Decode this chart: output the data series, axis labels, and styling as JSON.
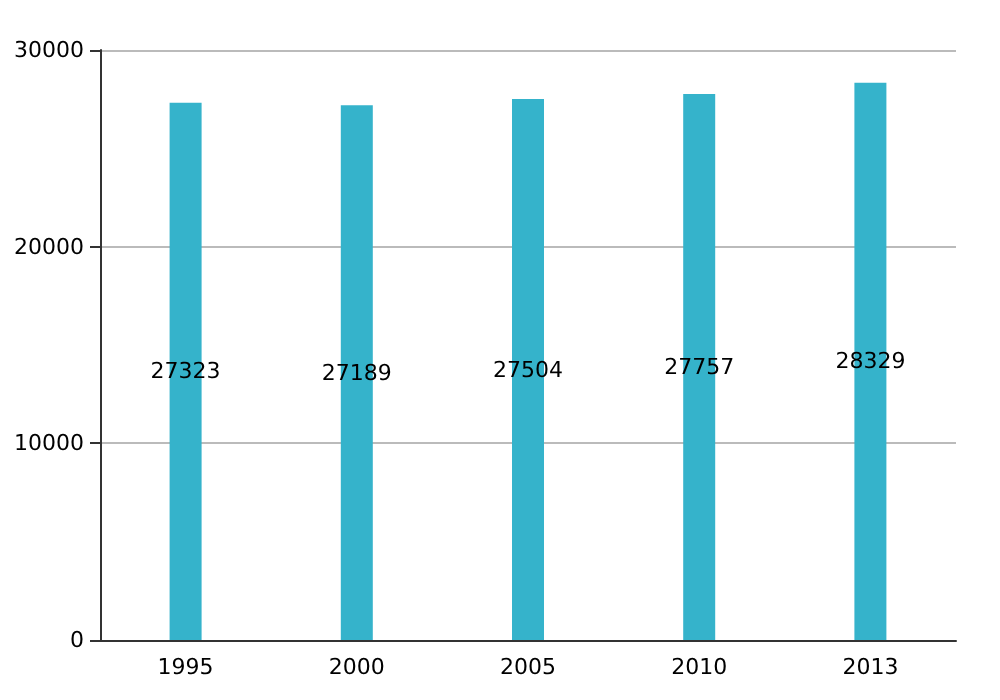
{
  "chart_data": {
    "type": "bar",
    "categories": [
      "1995",
      "2000",
      "2005",
      "2010",
      "2013"
    ],
    "values": [
      27323,
      27189,
      27504,
      27757,
      28329
    ],
    "color": "#35b3cb",
    "ylim": [
      0,
      30000
    ],
    "yticks": [
      0,
      10000,
      20000,
      30000
    ],
    "grid": "y",
    "data_labels": true
  }
}
